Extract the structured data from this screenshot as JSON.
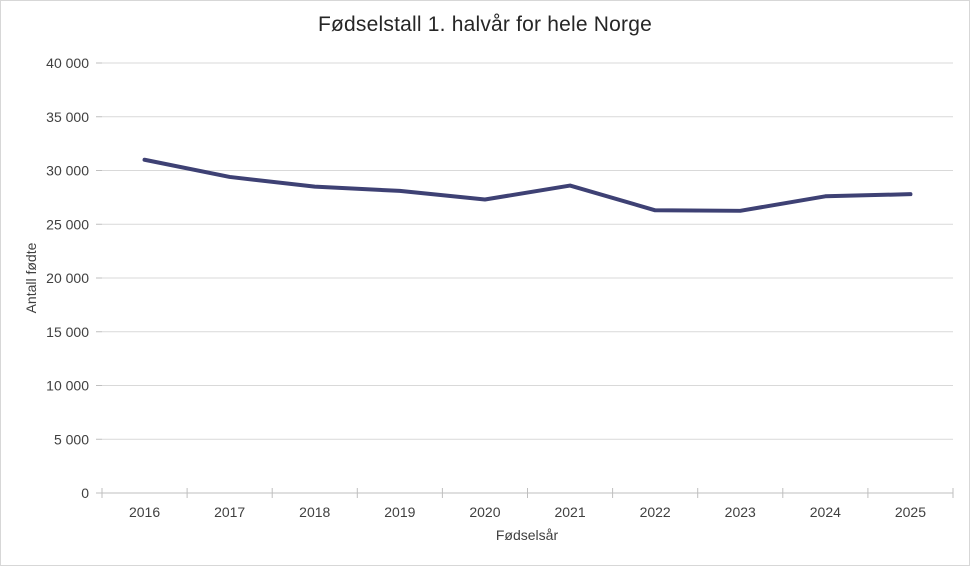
{
  "chart_data": {
    "type": "line",
    "title": "Fødselstall 1. halvår for hele Norge",
    "xlabel": "Fødselsår",
    "ylabel": "Antall fødte",
    "categories": [
      "2016",
      "2017",
      "2018",
      "2019",
      "2020",
      "2021",
      "2022",
      "2023",
      "2024",
      "2025"
    ],
    "series": [
      {
        "name": "Antall fødte",
        "values": [
          31000,
          29400,
          28500,
          28100,
          27300,
          28600,
          26300,
          26250,
          27600,
          27800
        ]
      }
    ],
    "ylim": [
      0,
      40000
    ],
    "yticks": [
      {
        "value": 0,
        "label": "0"
      },
      {
        "value": 5000,
        "label": "5 000"
      },
      {
        "value": 10000,
        "label": "10 000"
      },
      {
        "value": 15000,
        "label": "15 000"
      },
      {
        "value": 20000,
        "label": "20 000"
      },
      {
        "value": 25000,
        "label": "25 000"
      },
      {
        "value": 30000,
        "label": "30 000"
      },
      {
        "value": 35000,
        "label": "35 000"
      },
      {
        "value": 40000,
        "label": "40 000"
      }
    ],
    "grid": "horizontal",
    "legend_position": "none",
    "colors": {
      "line": "#3E4174",
      "gridline": "#D9D9D9",
      "axis": "#BFBFBF",
      "tick_text": "#404040",
      "title_text": "#262626",
      "background": "#FFFFFF"
    }
  }
}
